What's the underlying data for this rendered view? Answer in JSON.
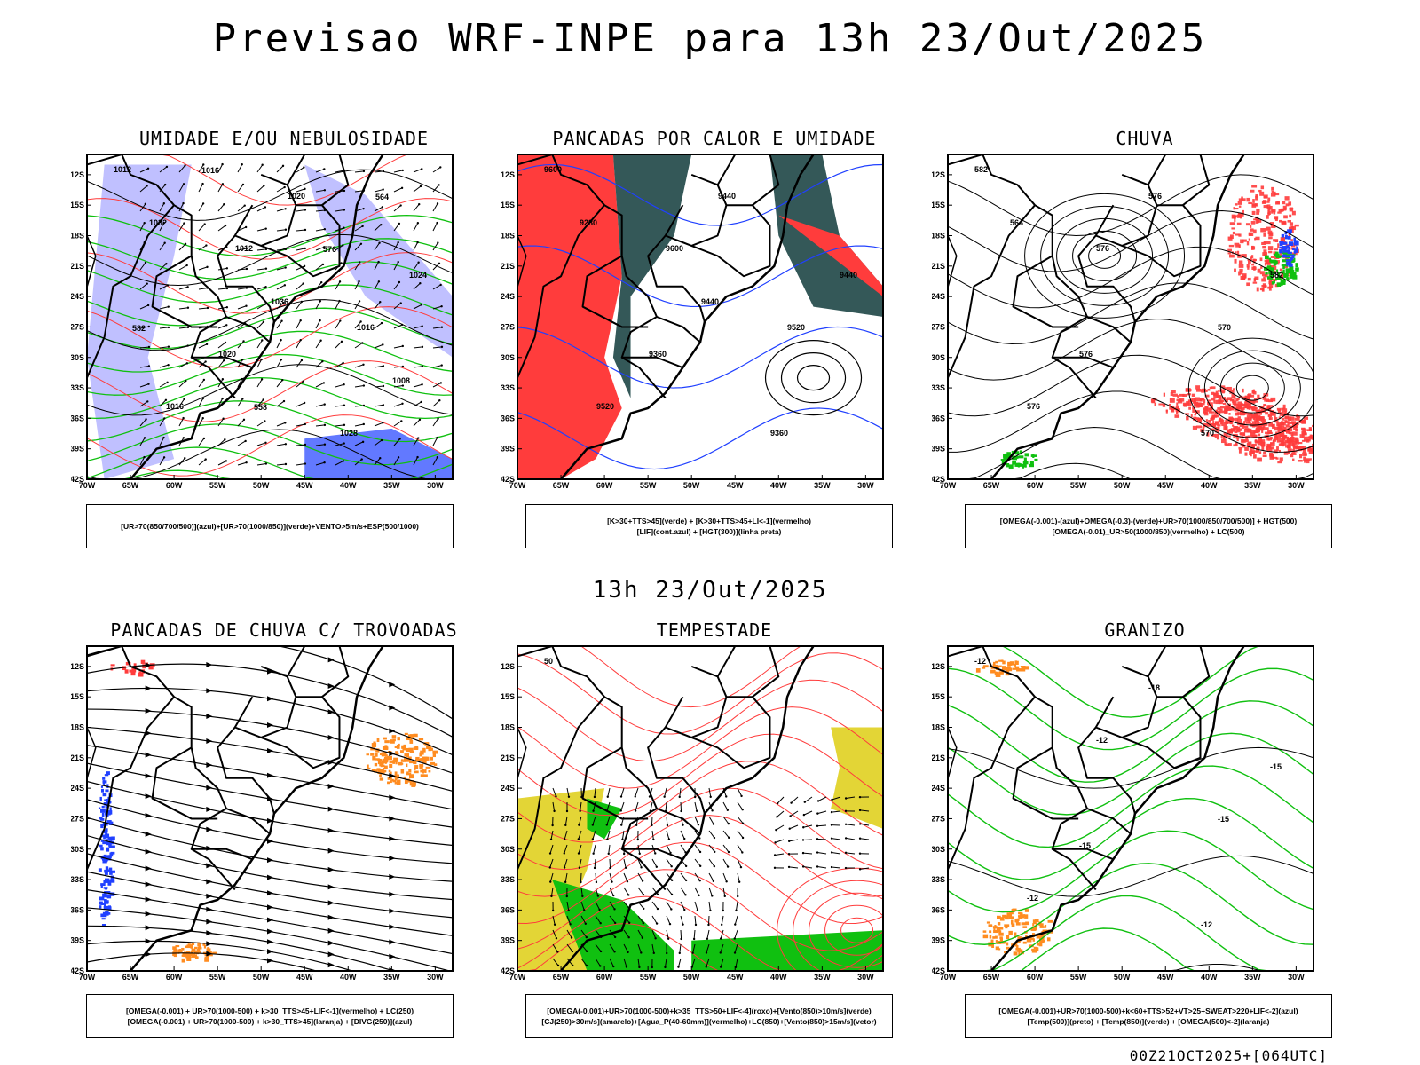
{
  "header": {
    "title": "Previsao WRF-INPE  para 13h 23/Out/2025",
    "subtitle": "13h 23/Out/2025"
  },
  "axes": {
    "lat_labels": [
      "12S",
      "15S",
      "18S",
      "21S",
      "24S",
      "27S",
      "30S",
      "33S",
      "36S",
      "39S",
      "42S"
    ],
    "lon_labels": [
      "70W",
      "65W",
      "60W",
      "55W",
      "50W",
      "45W",
      "40W",
      "35W",
      "30W"
    ]
  },
  "colors": {
    "blue": "#2040ff",
    "green": "#10c010",
    "red": "#ff3c3c",
    "orange": "#ff8c20",
    "yellow": "#e0d020",
    "lavender": "#b0b0ff",
    "darkteal": "#1e4646"
  },
  "panels": [
    {
      "id": "umidade",
      "title": "UMIDADE E/OU NEBULOSIDADE",
      "legend": [
        "[UR>70(850/700/500)](azul)+[UR>70(1000/850)](verde)+VENTO>5m/s+ESP(500/1000)"
      ],
      "contour_labels": [
        "1012",
        "1012",
        "1016",
        "1016",
        "1020",
        "1024",
        "1020",
        "1028",
        "1032",
        "1036",
        "1008",
        "1016",
        "576",
        "582",
        "558",
        "564"
      ]
    },
    {
      "id": "pancadas-calor",
      "title": "PANCADAS POR CALOR E UMIDADE",
      "legend": [
        "[K>30+TTS>45](verde) + [K>30+TTS>45+LI<-1](vermelho)",
        "[LIF](cont.azul) + [HGT(300)](linha preta)"
      ],
      "contour_labels": [
        "9600",
        "9600",
        "9520",
        "9520",
        "9440",
        "9440",
        "9360",
        "9360",
        "9280",
        "9440"
      ]
    },
    {
      "id": "chuva",
      "title": "CHUVA",
      "legend": [
        "[OMEGA(-0.001)-(azul)+OMEGA(-0.3)-(verde)+UR>70(1000/850/700/500)] + HGT(500)",
        "[OMEGA(-0.01)_UR>50(1000/850)(vermelho) + LC(500)"
      ],
      "contour_labels": [
        "582",
        "576",
        "570",
        "576",
        "576",
        "582",
        "576",
        "570",
        "564"
      ]
    },
    {
      "id": "pancadas-trovoadas",
      "title": "PANCADAS DE CHUVA C/ TROVOADAS",
      "legend": [
        "[OMEGA(-0.001) + UR>70(1000-500) + k>30_TTS>45+LIF<-1](vermelho) + LC(250)",
        "[OMEGA(-0.001) + UR>70(1000-500) + k>30_TTS>45](laranja) + [DIVG(250)](azul)"
      ],
      "contour_labels": []
    },
    {
      "id": "tempestade",
      "title": "TEMPESTADE",
      "legend": [
        "[OMEGA(-0.001)+UR>70(1000-500)+k>35_TTS>50+LIF<-4](roxo)+[Vento(850)>10m/s](verde)",
        "[CJ(250)>30m/s](amarelo)+[Agua_P(40-60mm)](vermelho)+LC(850)+[Vento(850)>15m/s](vetor)"
      ],
      "contour_labels": [
        "50"
      ]
    },
    {
      "id": "granizo",
      "title": "GRANIZO",
      "legend": [
        "[OMEGA(-0.001)+UR>70(1000-500)+k<60+TTS>52+VT>25+SWEAT>220+LIF<-2](azul)",
        "[Temp(500)](preto) + [Temp(850)](verde) + [OMEGA(500)<-2](laranja)"
      ],
      "contour_labels": [
        "-12",
        "-12",
        "-15",
        "-12",
        "-18",
        "-15",
        "-15",
        "-12"
      ]
    }
  ],
  "footer": {
    "run_info": "00Z21OCT2025+[064UTC]"
  }
}
